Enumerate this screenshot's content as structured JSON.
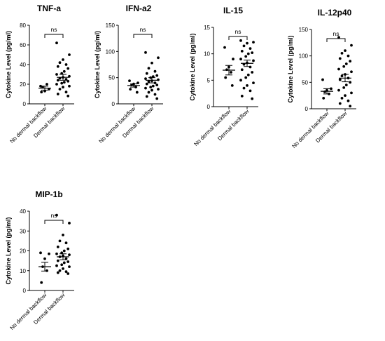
{
  "chart_data": [
    {
      "type": "scatter",
      "title": "TNF-a",
      "ylabel": "Cytokine Level (pg/ml)",
      "categories": [
        "No dermal backflow",
        "Dermal backflow"
      ],
      "yticks": [
        0,
        20,
        40,
        60,
        80
      ],
      "ylim": [
        0,
        80
      ],
      "significance": "ns",
      "series": [
        {
          "values": [
            18,
            15,
            13,
            17,
            20,
            12
          ],
          "mean": 16,
          "sem": 2
        },
        {
          "values": [
            62,
            50,
            45,
            42,
            40,
            38,
            36,
            33,
            31,
            30,
            28,
            27,
            26,
            25,
            24,
            23,
            22,
            21,
            20,
            18,
            17,
            15,
            12,
            10,
            8
          ],
          "mean": 27,
          "sem": 3
        }
      ]
    },
    {
      "type": "scatter",
      "title": "IFN-a2",
      "ylabel": "Cytokine Level (pg/ml)",
      "categories": [
        "No dermal backflow",
        "Dermal backflow"
      ],
      "yticks": [
        0,
        50,
        100,
        150
      ],
      "ylim": [
        0,
        150
      ],
      "significance": "ns",
      "series": [
        {
          "values": [
            44,
            40,
            38,
            36,
            32,
            28,
            22
          ],
          "mean": 35,
          "sem": 3
        },
        {
          "values": [
            98,
            88,
            78,
            68,
            62,
            58,
            54,
            52,
            50,
            48,
            46,
            44,
            42,
            40,
            38,
            36,
            34,
            32,
            30,
            28,
            26,
            22,
            18,
            14,
            10
          ],
          "mean": 45,
          "sem": 5
        }
      ]
    },
    {
      "type": "scatter",
      "title": "IL-15",
      "ylabel": "Cytokine Level (pg/ml)",
      "categories": [
        "No dermal backflow",
        "Dermal backflow"
      ],
      "yticks": [
        0,
        5,
        10,
        15
      ],
      "ylim": [
        0,
        15
      ],
      "significance": "ns",
      "series": [
        {
          "values": [
            11.2,
            9,
            7.5,
            7,
            6.5,
            5.5,
            4
          ],
          "mean": 6.9,
          "sem": 0.9
        },
        {
          "values": [
            12.5,
            12.2,
            12,
            11.5,
            11,
            10.5,
            10.2,
            10,
            9.5,
            9,
            8.7,
            8.3,
            8,
            7.5,
            7,
            6.5,
            6,
            5.5,
            5,
            4.5,
            4,
            3.5,
            3,
            2,
            1.5
          ],
          "mean": 8.2,
          "sem": 0.6
        }
      ]
    },
    {
      "type": "scatter",
      "title": "IL-12p40",
      "ylabel": "Cytokine Level (pg/ml)",
      "categories": [
        "No dermal backflow",
        "Dermal backflow"
      ],
      "yticks": [
        0,
        50,
        100,
        150
      ],
      "ylim": [
        0,
        150
      ],
      "significance": "ns",
      "series": [
        {
          "values": [
            55,
            38,
            35,
            32,
            28,
            20
          ],
          "mean": 33,
          "sem": 5
        },
        {
          "values": [
            135,
            120,
            110,
            105,
            100,
            95,
            90,
            85,
            80,
            75,
            70,
            65,
            62,
            58,
            55,
            50,
            45,
            40,
            35,
            30,
            25,
            20,
            15,
            10,
            5
          ],
          "mean": 58,
          "sem": 7
        }
      ]
    },
    {
      "type": "scatter",
      "title": "MIP-1b",
      "ylabel": "Cytokine Level (pg/ml)",
      "categories": [
        "No dermal backflow",
        "Dermal backflow"
      ],
      "yticks": [
        0,
        10,
        20,
        30,
        40
      ],
      "ylim": [
        0,
        40
      ],
      "significance": "ns",
      "series": [
        {
          "values": [
            19,
            18.5,
            16,
            12,
            10,
            4
          ],
          "mean": 12,
          "sem": 2.2
        },
        {
          "values": [
            38,
            34,
            28,
            25,
            24,
            22,
            21,
            20,
            19,
            18.5,
            18,
            17.5,
            17,
            16,
            15,
            14.5,
            14,
            13,
            12.5,
            12,
            11,
            10,
            9.5,
            9,
            8.5
          ],
          "mean": 17,
          "sem": 1.5
        }
      ]
    }
  ]
}
